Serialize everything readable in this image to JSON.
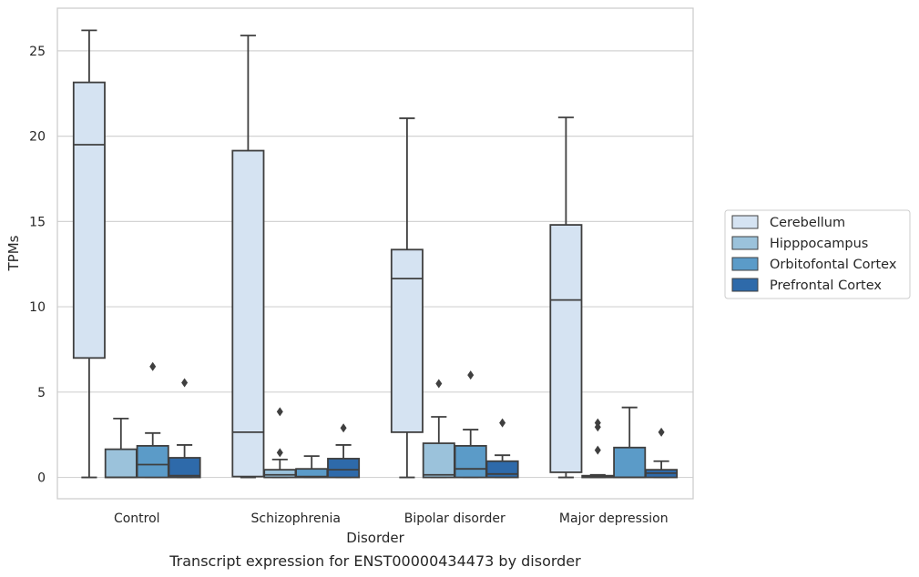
{
  "caption": "Transcript expression for ENST00000434473 by disorder",
  "chart_data": {
    "type": "box",
    "xlabel": "Disorder",
    "ylabel": "TPMs",
    "ylim": [
      -1.25,
      27.5
    ],
    "yticks": [
      0,
      5,
      10,
      15,
      20,
      25
    ],
    "grid": "horizontal",
    "legend_position": "right",
    "categories": [
      "Control",
      "Schizophrenia",
      "Bipolar disorder",
      "Major depression"
    ],
    "series": [
      {
        "name": "Cerebellum",
        "color": "#d5e3f2",
        "boxes": [
          {
            "whisker_low": 0.0,
            "q1": 7.0,
            "median": 19.5,
            "q3": 23.15,
            "whisker_high": 26.2,
            "outliers": []
          },
          {
            "whisker_low": 0.0,
            "q1": 0.05,
            "median": 2.65,
            "q3": 19.15,
            "whisker_high": 25.9,
            "outliers": []
          },
          {
            "whisker_low": 0.0,
            "q1": 2.65,
            "median": 11.65,
            "q3": 13.35,
            "whisker_high": 21.05,
            "outliers": []
          },
          {
            "whisker_low": 0.0,
            "q1": 0.3,
            "median": 10.4,
            "q3": 14.8,
            "whisker_high": 21.1,
            "outliers": []
          }
        ]
      },
      {
        "name": "Hipppocampus",
        "color": "#9bc2db",
        "boxes": [
          {
            "whisker_low": 0.0,
            "q1": 0.0,
            "median": 0.0,
            "q3": 1.65,
            "whisker_high": 3.45,
            "outliers": []
          },
          {
            "whisker_low": 0.0,
            "q1": 0.0,
            "median": 0.15,
            "q3": 0.45,
            "whisker_high": 1.05,
            "outliers": [
              1.45,
              3.85
            ]
          },
          {
            "whisker_low": 0.0,
            "q1": 0.0,
            "median": 0.15,
            "q3": 2.0,
            "whisker_high": 3.55,
            "outliers": [
              5.5
            ]
          },
          {
            "whisker_low": 0.0,
            "q1": 0.0,
            "median": 0.05,
            "q3": 0.1,
            "whisker_high": 0.15,
            "outliers": [
              1.6,
              2.95,
              3.2
            ]
          }
        ]
      },
      {
        "name": "Orbitofontal Cortex",
        "color": "#5b9bc8",
        "boxes": [
          {
            "whisker_low": 0.0,
            "q1": 0.0,
            "median": 0.75,
            "q3": 1.85,
            "whisker_high": 2.6,
            "outliers": [
              6.5
            ]
          },
          {
            "whisker_low": 0.0,
            "q1": 0.0,
            "median": 0.05,
            "q3": 0.5,
            "whisker_high": 1.25,
            "outliers": []
          },
          {
            "whisker_low": 0.0,
            "q1": 0.0,
            "median": 0.5,
            "q3": 1.85,
            "whisker_high": 2.8,
            "outliers": [
              6.0
            ]
          },
          {
            "whisker_low": 0.0,
            "q1": 0.0,
            "median": 0.0,
            "q3": 1.75,
            "whisker_high": 4.1,
            "outliers": []
          }
        ]
      },
      {
        "name": "Prefrontal Cortex",
        "color": "#2e6aaa",
        "boxes": [
          {
            "whisker_low": 0.0,
            "q1": 0.0,
            "median": 0.1,
            "q3": 1.15,
            "whisker_high": 1.9,
            "outliers": [
              5.55
            ]
          },
          {
            "whisker_low": 0.0,
            "q1": 0.0,
            "median": 0.45,
            "q3": 1.1,
            "whisker_high": 1.9,
            "outliers": [
              2.9
            ]
          },
          {
            "whisker_low": 0.0,
            "q1": 0.0,
            "median": 0.2,
            "q3": 0.95,
            "whisker_high": 1.3,
            "outliers": [
              3.2
            ]
          },
          {
            "whisker_low": 0.0,
            "q1": 0.0,
            "median": 0.25,
            "q3": 0.45,
            "whisker_high": 0.95,
            "outliers": [
              2.65
            ]
          }
        ]
      }
    ]
  }
}
